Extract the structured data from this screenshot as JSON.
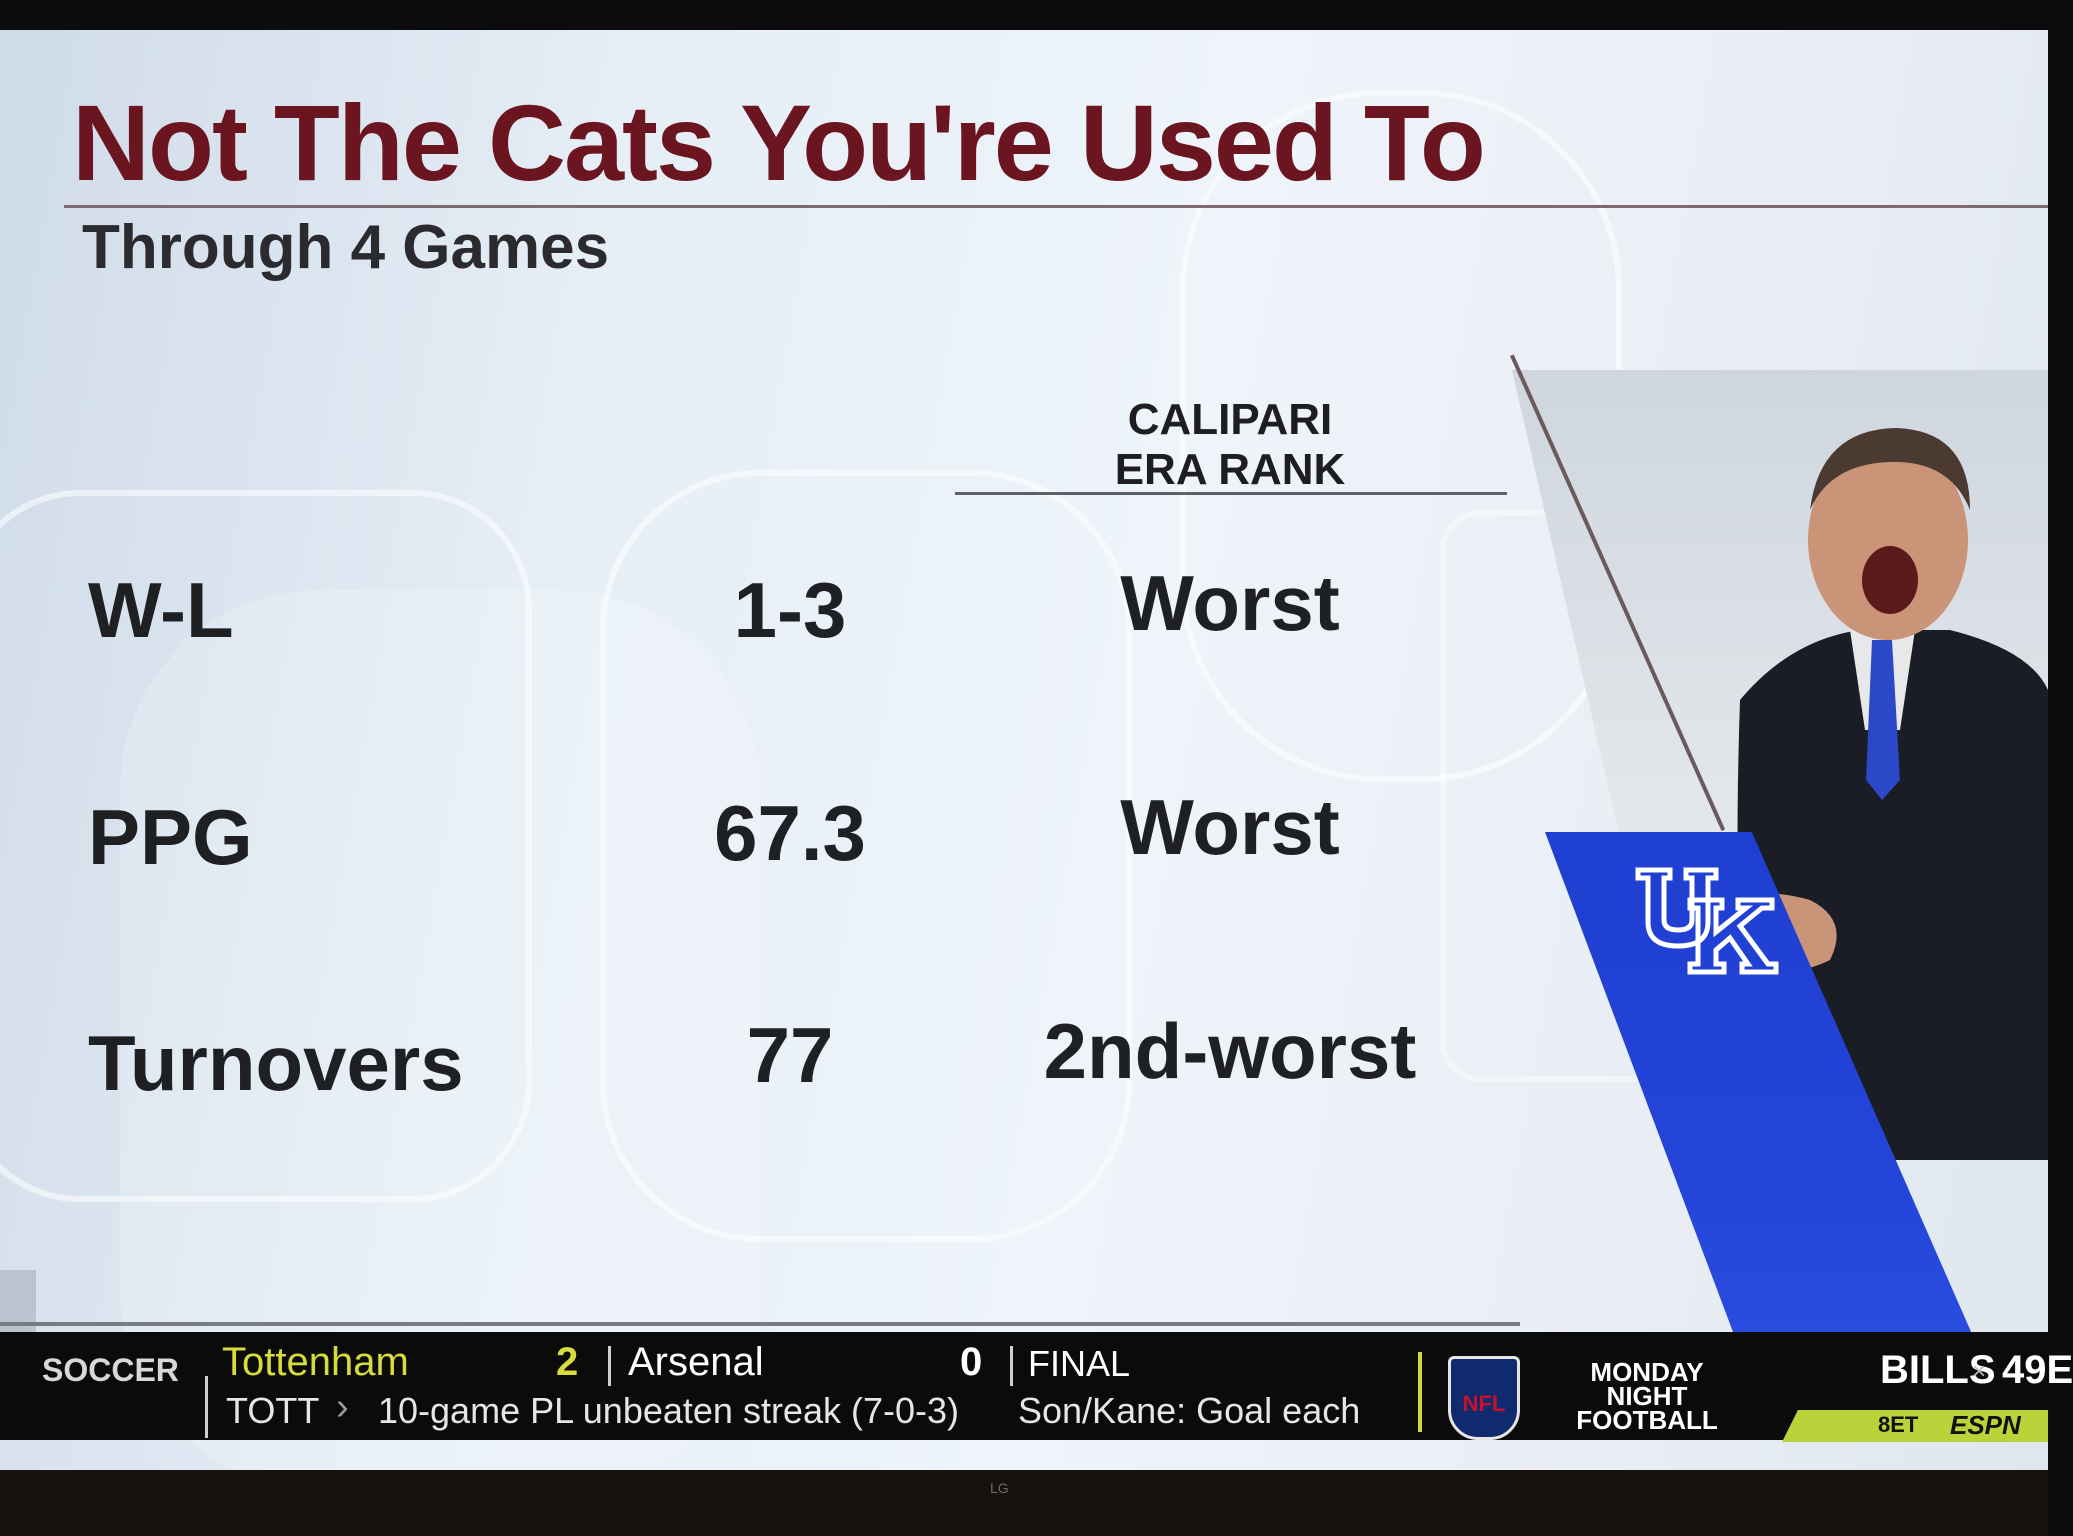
{
  "graphic": {
    "title": "Not The Cats You're Used To",
    "subtitle": "Through 4 Games",
    "column_header": "CALIPARI\nERA RANK",
    "rows": [
      {
        "label": "W-L",
        "value": "1-3",
        "rank": "Worst"
      },
      {
        "label": "PPG",
        "value": "67.3",
        "rank": "Worst"
      },
      {
        "label": "Turnovers",
        "value": "77",
        "rank": "2nd-worst"
      }
    ],
    "colors": {
      "title": "#6a1520",
      "uk_blue": "#2445d9"
    }
  },
  "ticker": {
    "sport": "SOCCER",
    "team1": "Tottenham",
    "score1": "2",
    "team2": "Arsenal",
    "score2": "0",
    "status": "FINAL",
    "team_abbr": "TOTT",
    "headline": "10-game PL unbeaten streak (7-0-3)",
    "note": "Son/Kane: Goal each",
    "league_logo": "NFL",
    "promo_title": "MONDAY\nNIGHT\nFOOTBALL",
    "promo_team1": "BILLS",
    "promo_vs": "×",
    "promo_team2": "49E",
    "promo_time": "8ET",
    "promo_network": "ESPN",
    "colors": {
      "highlight": "#d8dc3a",
      "promo_bar": "#b8d43a"
    }
  },
  "tv_brand": "LG"
}
